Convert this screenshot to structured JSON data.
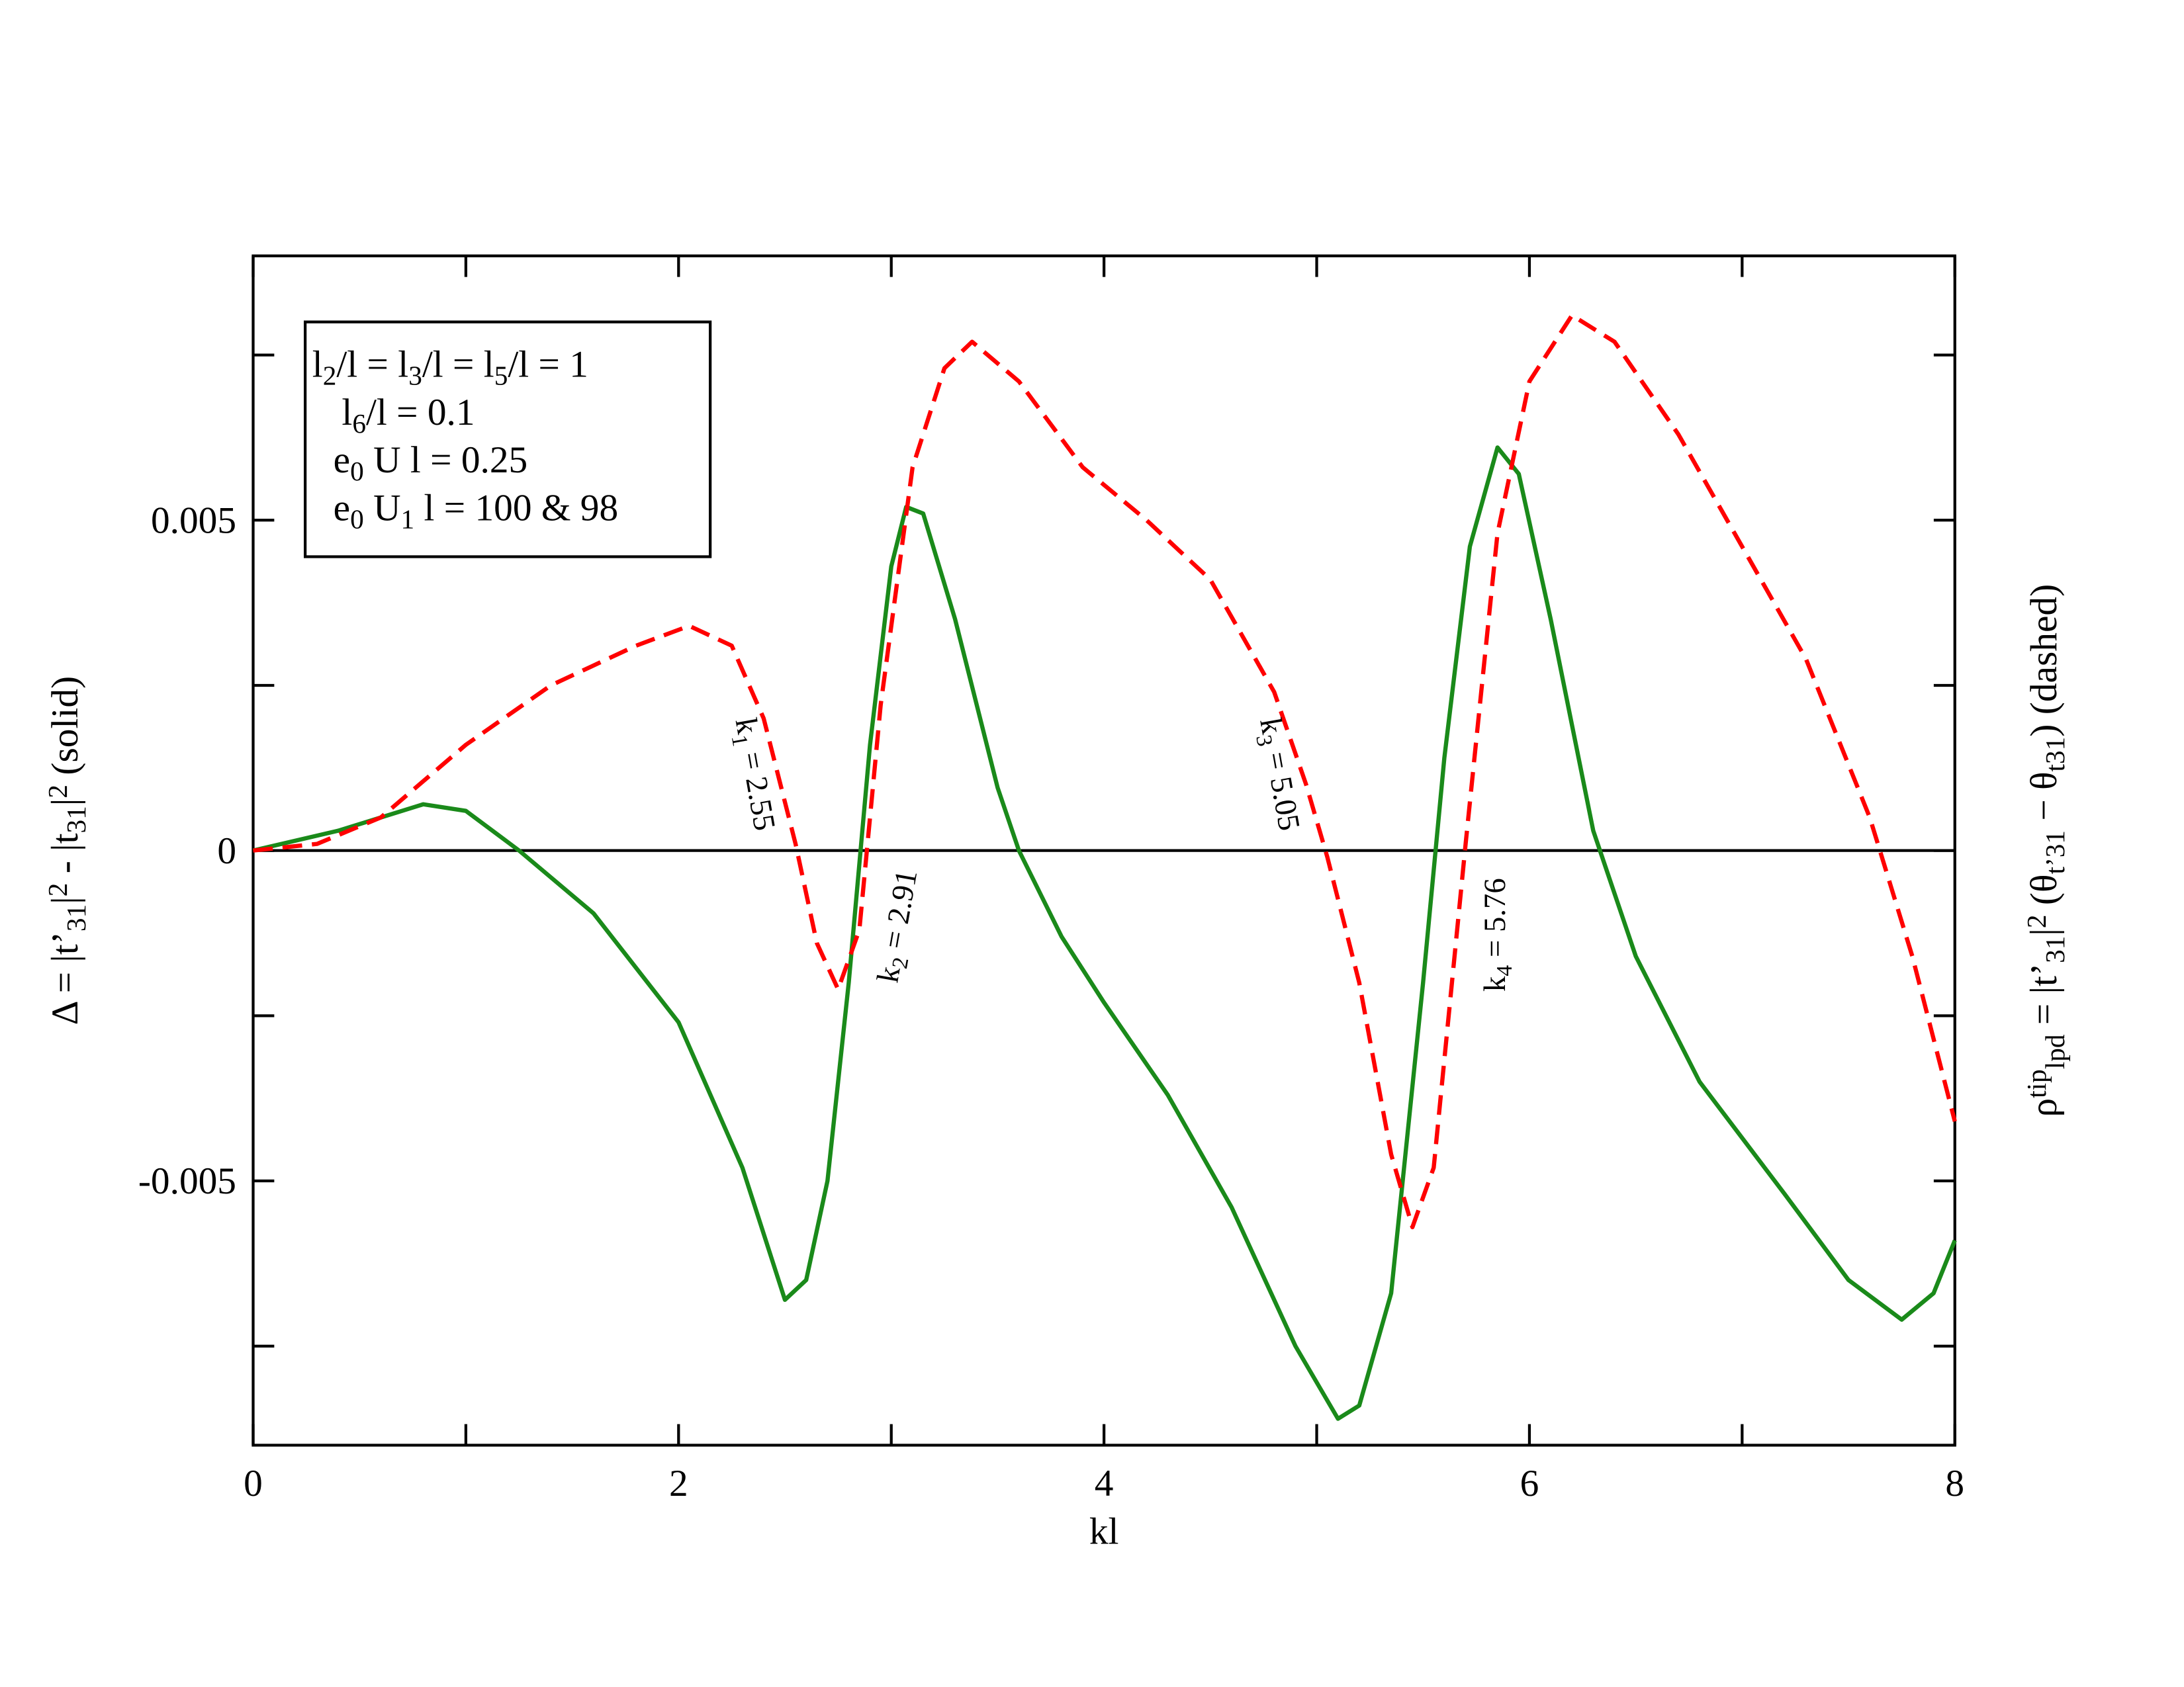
{
  "chart_data": {
    "type": "line",
    "xlabel": "kl",
    "ylabel": [
      "Δ = |t’",
      {
        "sub": "31"
      },
      "|",
      {
        "sup": "2"
      },
      " - |t",
      {
        "sub": "31"
      },
      "|",
      {
        "sup": "2"
      },
      " (solid)"
    ],
    "y2label": [
      "ρ",
      {
        "sup": "tip"
      },
      {
        "sub": "lpd"
      },
      " = |t’",
      {
        "sub": "31"
      },
      "|",
      {
        "sup": "2"
      },
      " (θ",
      {
        "sub": "t’31"
      },
      " − θ",
      {
        "sub": "t31"
      },
      ")   (dashed)"
    ],
    "xlim": [
      0,
      8
    ],
    "xticks": [
      0,
      2,
      4,
      6,
      8
    ],
    "xminorticks": [
      1,
      3,
      5,
      7
    ],
    "ylim": [
      -0.009,
      0.009
    ],
    "yticks": [
      -0.005,
      0,
      0.005
    ],
    "yminorticks": [
      -0.0075,
      -0.0025,
      0.0025,
      0.0075
    ],
    "tick_label_color": "#ff0000",
    "zero_line": true,
    "legend_box": {
      "lines": [
        [
          "l",
          {
            "sub": "2"
          },
          "/l = l",
          {
            "sub": "3"
          },
          "/l = l",
          {
            "sub": "5"
          },
          "/l = 1"
        ],
        [
          " l",
          {
            "sub": "6"
          },
          "/l = 0.1"
        ],
        [
          "e",
          {
            "sub": "0"
          },
          " U l = 0.25"
        ],
        [
          "e",
          {
            "sub": "0"
          },
          " U",
          {
            "sub": "1"
          },
          " l = 100 & 98"
        ]
      ]
    },
    "annotations": [
      [
        "k",
        {
          "sub": "1"
        },
        " = 2.55"
      ],
      [
        "k",
        {
          "sub": "2"
        },
        " = 2.91"
      ],
      [
        "k",
        {
          "sub": "3"
        },
        " = 5.05"
      ],
      [
        "k",
        {
          "sub": "4"
        },
        " = 5.76"
      ]
    ],
    "series": [
      {
        "color": "#1a8a1a",
        "dashed": false,
        "x": [
          0,
          0.4,
          0.8,
          1.0,
          1.25,
          1.6,
          2.0,
          2.3,
          2.5,
          2.6,
          2.7,
          2.8,
          2.9,
          3.0,
          3.07,
          3.15,
          3.3,
          3.5,
          3.6,
          3.8,
          4.0,
          4.3,
          4.6,
          4.9,
          5.1,
          5.2,
          5.35,
          5.5,
          5.6,
          5.72,
          5.85,
          5.95,
          6.1,
          6.3,
          6.5,
          6.8,
          7.2,
          7.5,
          7.75,
          7.9,
          8.0
        ],
        "values": [
          0,
          0.0003,
          0.0007,
          0.0006,
          0,
          -0.00095,
          -0.0026,
          -0.0048,
          -0.0068,
          -0.0065,
          -0.005,
          -0.002,
          0.0016,
          0.0043,
          0.0052,
          0.0051,
          0.0035,
          0.00095,
          0,
          -0.0013,
          -0.0023,
          -0.0037,
          -0.0054,
          -0.0075,
          -0.0086,
          -0.0084,
          -0.0067,
          -0.002,
          0.0014,
          0.0046,
          0.0061,
          0.0057,
          0.0035,
          0.0003,
          -0.0016,
          -0.0035,
          -0.0052,
          -0.0065,
          -0.0071,
          -0.0067,
          -0.0059
        ]
      },
      {
        "color": "#ff0000",
        "dashed": true,
        "x": [
          0,
          0.3,
          0.6,
          1.0,
          1.4,
          1.8,
          2.05,
          2.25,
          2.4,
          2.55,
          2.65,
          2.75,
          2.85,
          2.95,
          3.1,
          3.25,
          3.38,
          3.6,
          3.9,
          4.2,
          4.5,
          4.8,
          4.95,
          5.05,
          5.2,
          5.35,
          5.45,
          5.55,
          5.7,
          5.85,
          6.0,
          6.2,
          6.4,
          6.7,
          7.0,
          7.3,
          7.6,
          7.8,
          8.0
        ],
        "values": [
          0,
          0.0001,
          0.0005,
          0.0016,
          0.0025,
          0.0031,
          0.0034,
          0.0031,
          0.002,
          0.0001,
          -0.0014,
          -0.0021,
          -0.0012,
          0.0022,
          0.0058,
          0.0073,
          0.0077,
          0.0071,
          0.0058,
          0.005,
          0.0041,
          0.0024,
          0.001,
          -0.0001,
          -0.002,
          -0.0046,
          -0.0057,
          -0.0048,
          0.0001,
          0.0048,
          0.0071,
          0.0081,
          0.0077,
          0.0063,
          0.0046,
          0.0029,
          0.0005,
          -0.0016,
          -0.0041
        ]
      }
    ]
  }
}
